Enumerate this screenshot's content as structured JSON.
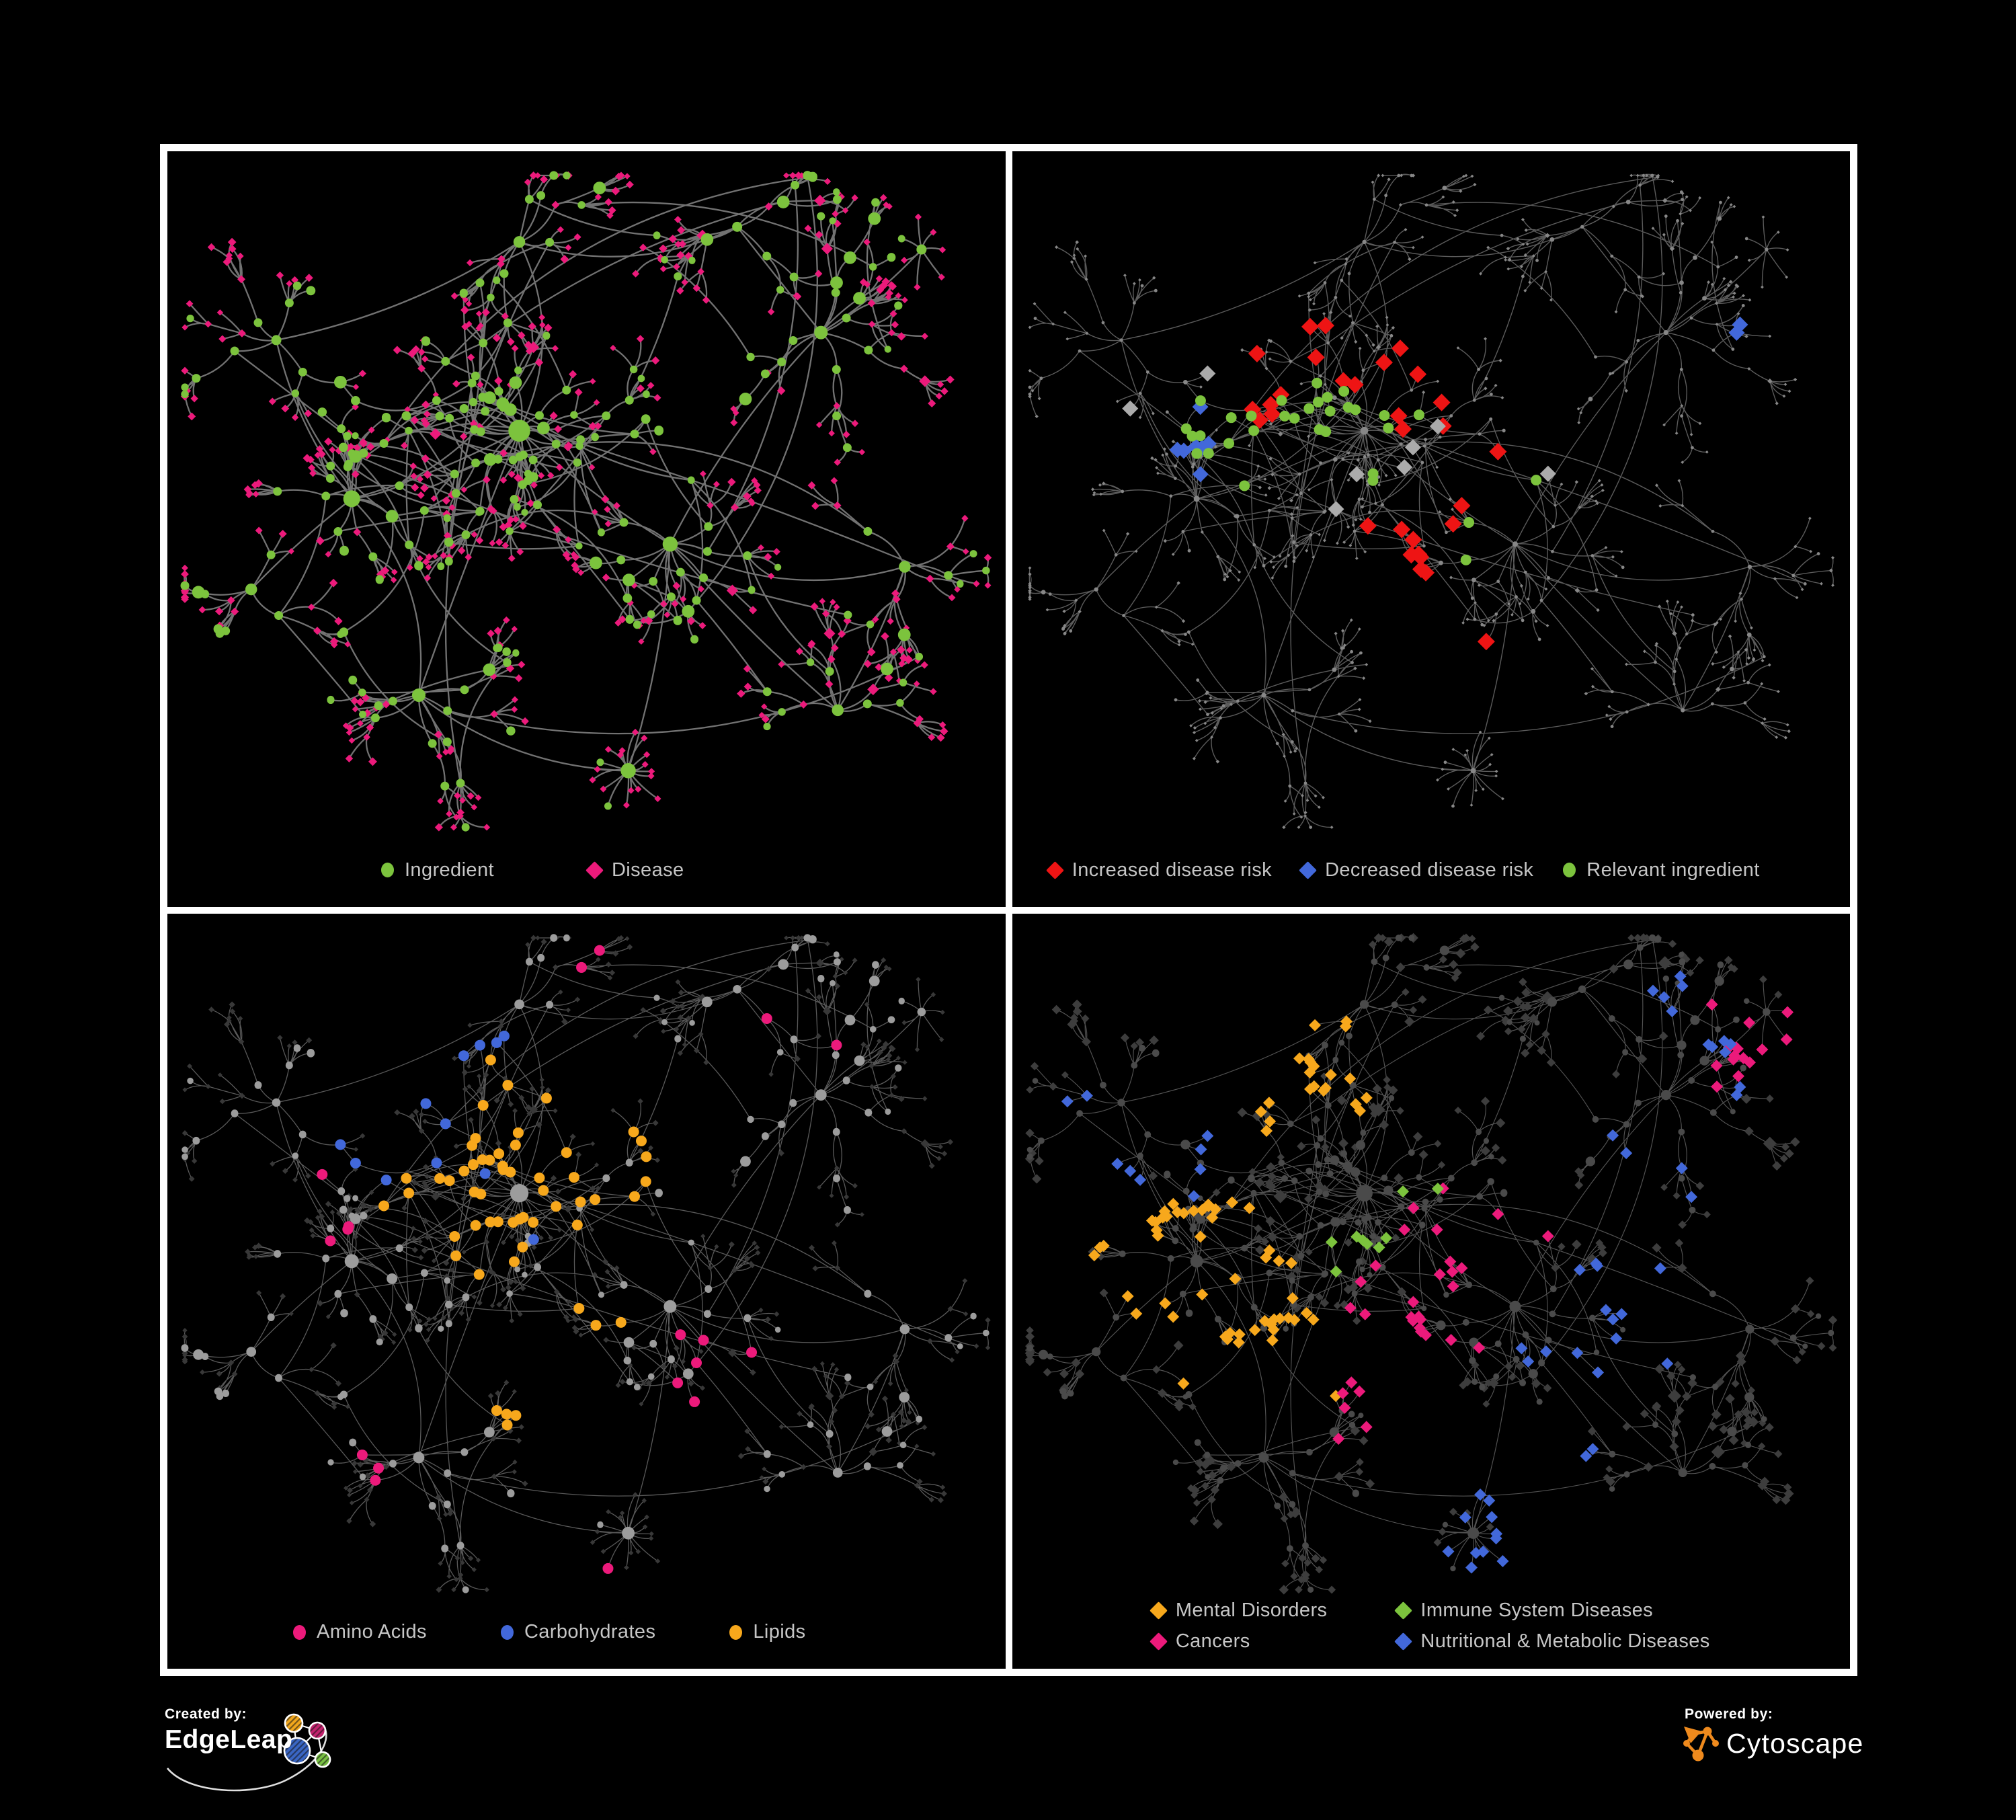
{
  "page": {
    "background": "#000000",
    "frame_color": "#ffffff",
    "legend_text_color": "#c6c6c6"
  },
  "panels": [
    {
      "id": "ingredient-disease",
      "legend": [
        {
          "shape": "circle",
          "color": "#7cc33d",
          "label": "Ingredient"
        },
        {
          "shape": "diamond",
          "color": "#ec1a7b",
          "label": "Disease"
        }
      ],
      "style": {
        "edge": "#7e7e7e",
        "edgeW": 2.3,
        "edgeOp": 0.9,
        "circle": "#7cc33d",
        "diamond": "#ec1a7b",
        "circleScale": 1.25,
        "diamondScale": 1.15,
        "minR": 4.5,
        "highlights": []
      }
    },
    {
      "id": "disease-risk",
      "legend": [
        {
          "shape": "diamond",
          "color": "#ee1414",
          "label": "Increased disease risk"
        },
        {
          "shape": "diamond",
          "color": "#4268da",
          "label": "Decreased disease risk"
        },
        {
          "shape": "circle",
          "color": "#7cc33d",
          "label": "Relevant ingredient"
        }
      ],
      "style": {
        "edge": "#6b6b6b",
        "edgeW": 1.4,
        "edgeOp": 0.85,
        "circle": "#878787",
        "diamond": "#878787",
        "circleScale": 0.45,
        "diamondScale": 0.5,
        "minR": 2.4,
        "highlights": [
          {
            "shape": "diamond",
            "color": "#ee1414",
            "count": 30,
            "size": 13,
            "foci": [
              [
                0.46,
                0.32
              ],
              [
                0.58,
                0.42
              ],
              [
                0.33,
                0.3
              ],
              [
                0.5,
                0.52
              ],
              [
                0.56,
                0.72
              ]
            ],
            "spread": 0.1,
            "scatter": 0.03
          },
          {
            "shape": "diamond",
            "color": "#4268da",
            "count": 9,
            "size": 12,
            "foci": [
              [
                0.23,
                0.37
              ],
              [
                0.25,
                0.45
              ],
              [
                0.87,
                0.26
              ]
            ],
            "spread": 0.05,
            "scatter": 0.01
          },
          {
            "shape": "diamond",
            "color": "#ababab",
            "count": 8,
            "size": 12,
            "foci": [
              [
                0.2,
                0.3
              ],
              [
                0.45,
                0.42
              ],
              [
                0.6,
                0.45
              ]
            ],
            "spread": 0.14,
            "scatter": 0.05
          },
          {
            "shape": "circle",
            "color": "#7cc33d",
            "count": 32,
            "size": 8,
            "foci": [
              [
                0.42,
                0.35
              ],
              [
                0.3,
                0.38
              ],
              [
                0.52,
                0.45
              ]
            ],
            "spread": 0.13,
            "scatter": 0.06
          }
        ]
      }
    },
    {
      "id": "ingredient-groups",
      "legend": [
        {
          "shape": "circle",
          "color": "#ec1a7b",
          "label": "Amino Acids"
        },
        {
          "shape": "circle",
          "color": "#4268da",
          "label": "Carbohydrates"
        },
        {
          "shape": "circle",
          "color": "#f7a81c",
          "label": "Lipids"
        }
      ],
      "style": {
        "edge": "#6f6f6f",
        "edgeW": 1.3,
        "edgeOp": 0.8,
        "circle": "#9c9c9c",
        "diamond": "#383838",
        "circleScale": 1.05,
        "diamondScale": 0.85,
        "minR": 3.5,
        "highlights": [
          {
            "shape": "circle",
            "color": "#f7a81c",
            "count": 55,
            "size": 8,
            "foci": [
              [
                0.4,
                0.28
              ],
              [
                0.35,
                0.38
              ],
              [
                0.5,
                0.33
              ],
              [
                0.45,
                0.6
              ]
            ],
            "spread": 0.09,
            "scatter": 0.03
          },
          {
            "shape": "circle",
            "color": "#4268da",
            "count": 12,
            "size": 8,
            "foci": [
              [
                0.38,
                0.3
              ],
              [
                0.33,
                0.25
              ]
            ],
            "spread": 0.06,
            "scatter": 0.02
          },
          {
            "shape": "circle",
            "color": "#ec1a7b",
            "count": 18,
            "size": 8,
            "foci": [
              [
                0.15,
                0.4
              ],
              [
                0.25,
                0.75
              ],
              [
                0.52,
                0.88
              ],
              [
                0.65,
                0.6
              ],
              [
                0.75,
                0.15
              ],
              [
                0.48,
                0.1
              ]
            ],
            "spread": 0.08,
            "scatter": 0.1
          }
        ]
      }
    },
    {
      "id": "disease-groups",
      "legend": [
        {
          "shape": "diamond",
          "color": "#f7a81c",
          "label": "Mental Disorders"
        },
        {
          "shape": "diamond",
          "color": "#7cc33d",
          "label": "Immune System Diseases"
        },
        {
          "shape": "diamond",
          "color": "#ec1a7b",
          "label": "Cancers"
        },
        {
          "shape": "diamond",
          "color": "#4268da",
          "label": "Nutritional & Metabolic Diseases"
        }
      ],
      "style": {
        "edge": "#979797",
        "edgeW": 1.15,
        "edgeOp": 0.55,
        "circle": "#4a4a4a",
        "diamond": "#3d3d3d",
        "circleScale": 0.95,
        "diamondScale": 1.35,
        "minR": 4,
        "highlights": [
          {
            "shape": "diamond",
            "color": "#f7a81c",
            "count": 72,
            "size": 9,
            "foci": [
              [
                0.25,
                0.52
              ],
              [
                0.2,
                0.45
              ],
              [
                0.3,
                0.58
              ],
              [
                0.33,
                0.2
              ]
            ],
            "spread": 0.08,
            "scatter": 0.02
          },
          {
            "shape": "diamond",
            "color": "#ec1a7b",
            "count": 46,
            "size": 9,
            "foci": [
              [
                0.5,
                0.52
              ],
              [
                0.55,
                0.42
              ],
              [
                0.45,
                0.62
              ],
              [
                0.92,
                0.18
              ]
            ],
            "spread": 0.08,
            "scatter": 0.03
          },
          {
            "shape": "diamond",
            "color": "#4268da",
            "count": 52,
            "size": 9,
            "foci": [
              [
                0.7,
                0.55
              ],
              [
                0.78,
                0.28
              ],
              [
                0.62,
                0.75
              ],
              [
                0.35,
                0.1
              ],
              [
                0.15,
                0.3
              ],
              [
                0.55,
                0.9
              ],
              [
                0.85,
                0.15
              ]
            ],
            "spread": 0.09,
            "scatter": 0.06
          },
          {
            "shape": "diamond",
            "color": "#7cc33d",
            "count": 9,
            "size": 9,
            "foci": [
              [
                0.48,
                0.42
              ],
              [
                0.55,
                0.55
              ]
            ],
            "spread": 0.15,
            "scatter": 0.12
          }
        ]
      }
    }
  ],
  "network_params": {
    "seed": 42,
    "highlight_seed_base": 100
  },
  "footer": {
    "created_by_label": "Created by:",
    "edgeleap_name": "EdgeLeap",
    "powered_by_label": "Powered by:",
    "cytoscape_name": "Cytoscape",
    "cytoscape_orange": "#ef8a1d",
    "edgeleap_colors": [
      "#f2a71c",
      "#c4216e",
      "#3a66c4",
      "#79c143"
    ]
  }
}
